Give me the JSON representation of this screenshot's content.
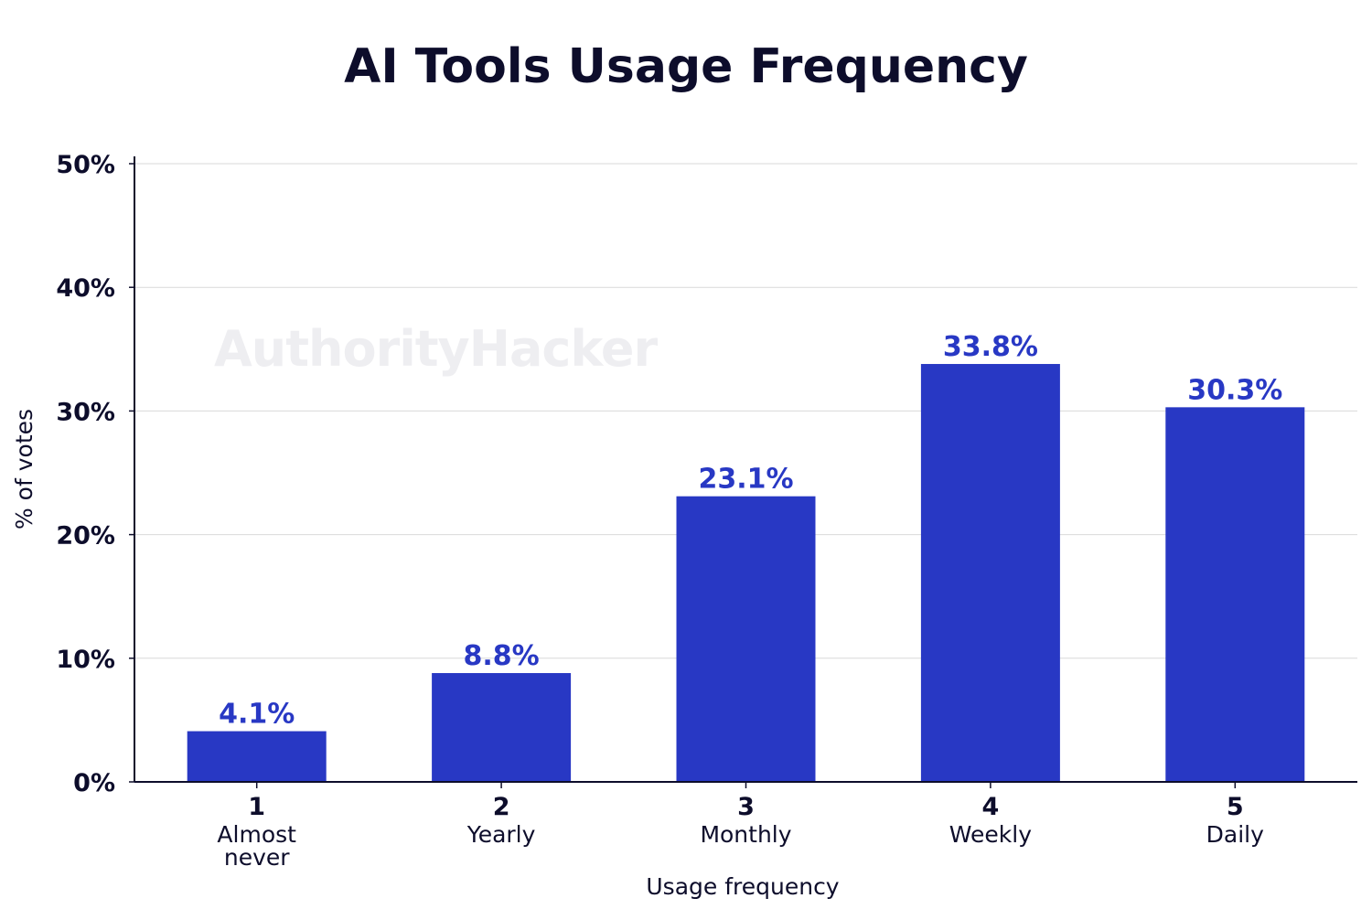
{
  "watermark": "AuthorityHacker",
  "colors": {
    "bar": "#2838c4",
    "data_label": "#2838c4",
    "text": "#0d0d2b",
    "grid": "#d9d9d9",
    "axis": "#0d0d2b"
  },
  "chart_data": {
    "type": "bar",
    "title": "AI Tools Usage Frequency",
    "xlabel": "Usage frequency",
    "ylabel": "% of votes",
    "ylim": [
      0,
      50
    ],
    "yticks": [
      0,
      10,
      20,
      30,
      40,
      50
    ],
    "ytick_labels": [
      "0%",
      "10%",
      "20%",
      "30%",
      "40%",
      "50%"
    ],
    "grid": true,
    "legend": "none",
    "categories": [
      {
        "number": "1",
        "lines": [
          "Almost",
          "never"
        ]
      },
      {
        "number": "2",
        "lines": [
          "Yearly"
        ]
      },
      {
        "number": "3",
        "lines": [
          "Monthly"
        ]
      },
      {
        "number": "4",
        "lines": [
          "Weekly"
        ]
      },
      {
        "number": "5",
        "lines": [
          "Daily"
        ]
      }
    ],
    "values": [
      4.1,
      8.8,
      23.1,
      33.8,
      30.3
    ],
    "data_labels": [
      "4.1%",
      "8.8%",
      "23.1%",
      "33.8%",
      "30.3%"
    ]
  }
}
